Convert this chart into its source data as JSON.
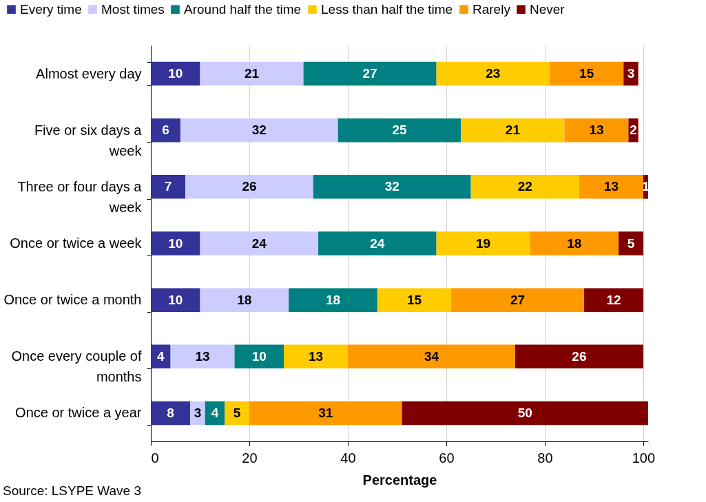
{
  "chart_data": {
    "type": "bar",
    "orientation": "horizontal",
    "stacked": true,
    "data_labels": true,
    "legend": "top",
    "grid": "x",
    "xlabel": "Percentage",
    "categories": [
      "Almost every day",
      "Five or six days a week",
      "Three or four days a week",
      "Once or twice a week",
      "Once or twice a month",
      "Once every couple of months",
      "Once or twice a year"
    ],
    "series": [
      {
        "name": "Every time",
        "color": "#333399",
        "values": [
          10,
          6,
          7,
          10,
          10,
          4,
          8
        ]
      },
      {
        "name": "Most times",
        "color": "#ccccff",
        "values": [
          21,
          32,
          26,
          24,
          18,
          13,
          3
        ]
      },
      {
        "name": "Around half the time",
        "color": "#008080",
        "values": [
          27,
          25,
          32,
          24,
          18,
          10,
          4
        ]
      },
      {
        "name": "Less than half the time",
        "color": "#ffcc00",
        "values": [
          23,
          21,
          22,
          19,
          15,
          13,
          5
        ]
      },
      {
        "name": "Rarely",
        "color": "#ff9900",
        "values": [
          15,
          13,
          13,
          18,
          27,
          34,
          31
        ]
      },
      {
        "name": "Never",
        "color": "#800000",
        "values": [
          3,
          2,
          1,
          5,
          12,
          26,
          50
        ]
      }
    ],
    "xlim": [
      0,
      101
    ],
    "xticks": [
      0,
      20,
      40,
      60,
      80,
      100
    ],
    "annotations": [
      "Source: LSYPE Wave 3"
    ]
  }
}
